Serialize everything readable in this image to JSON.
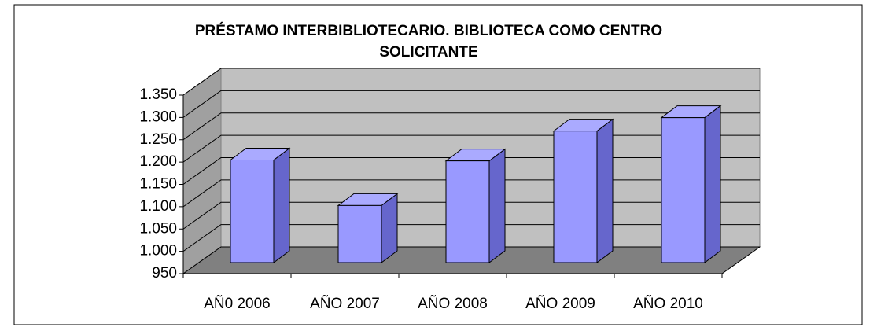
{
  "chart_data": {
    "type": "bar3d",
    "title": [
      "PRÉSTAMO INTERBIBLIOTECARIO.  BIBLIOTECA COMO CENTRO",
      "SOLICITANTE"
    ],
    "categories": [
      "AÑ0 2006",
      "AÑO 2007",
      "AÑO 2008",
      "AÑO 2009",
      "AÑO 2010"
    ],
    "values": [
      1180,
      1078,
      1178,
      1245,
      1275
    ],
    "color": "#9999ff",
    "ylim": [
      950,
      1350
    ],
    "yticks": [
      950,
      {
        "value": 1000,
        "label": "1.000"
      },
      {
        "value": 1050,
        "label": "1.050"
      },
      {
        "value": 1100,
        "label": "1.100"
      },
      {
        "value": 1150,
        "label": "1.150"
      },
      {
        "value": 1200,
        "label": "1.200"
      },
      {
        "value": 1250,
        "label": "1.250"
      },
      {
        "value": 1300,
        "label": "1.300"
      },
      {
        "value": 1350,
        "label": "1.350"
      }
    ],
    "grid": true
  }
}
